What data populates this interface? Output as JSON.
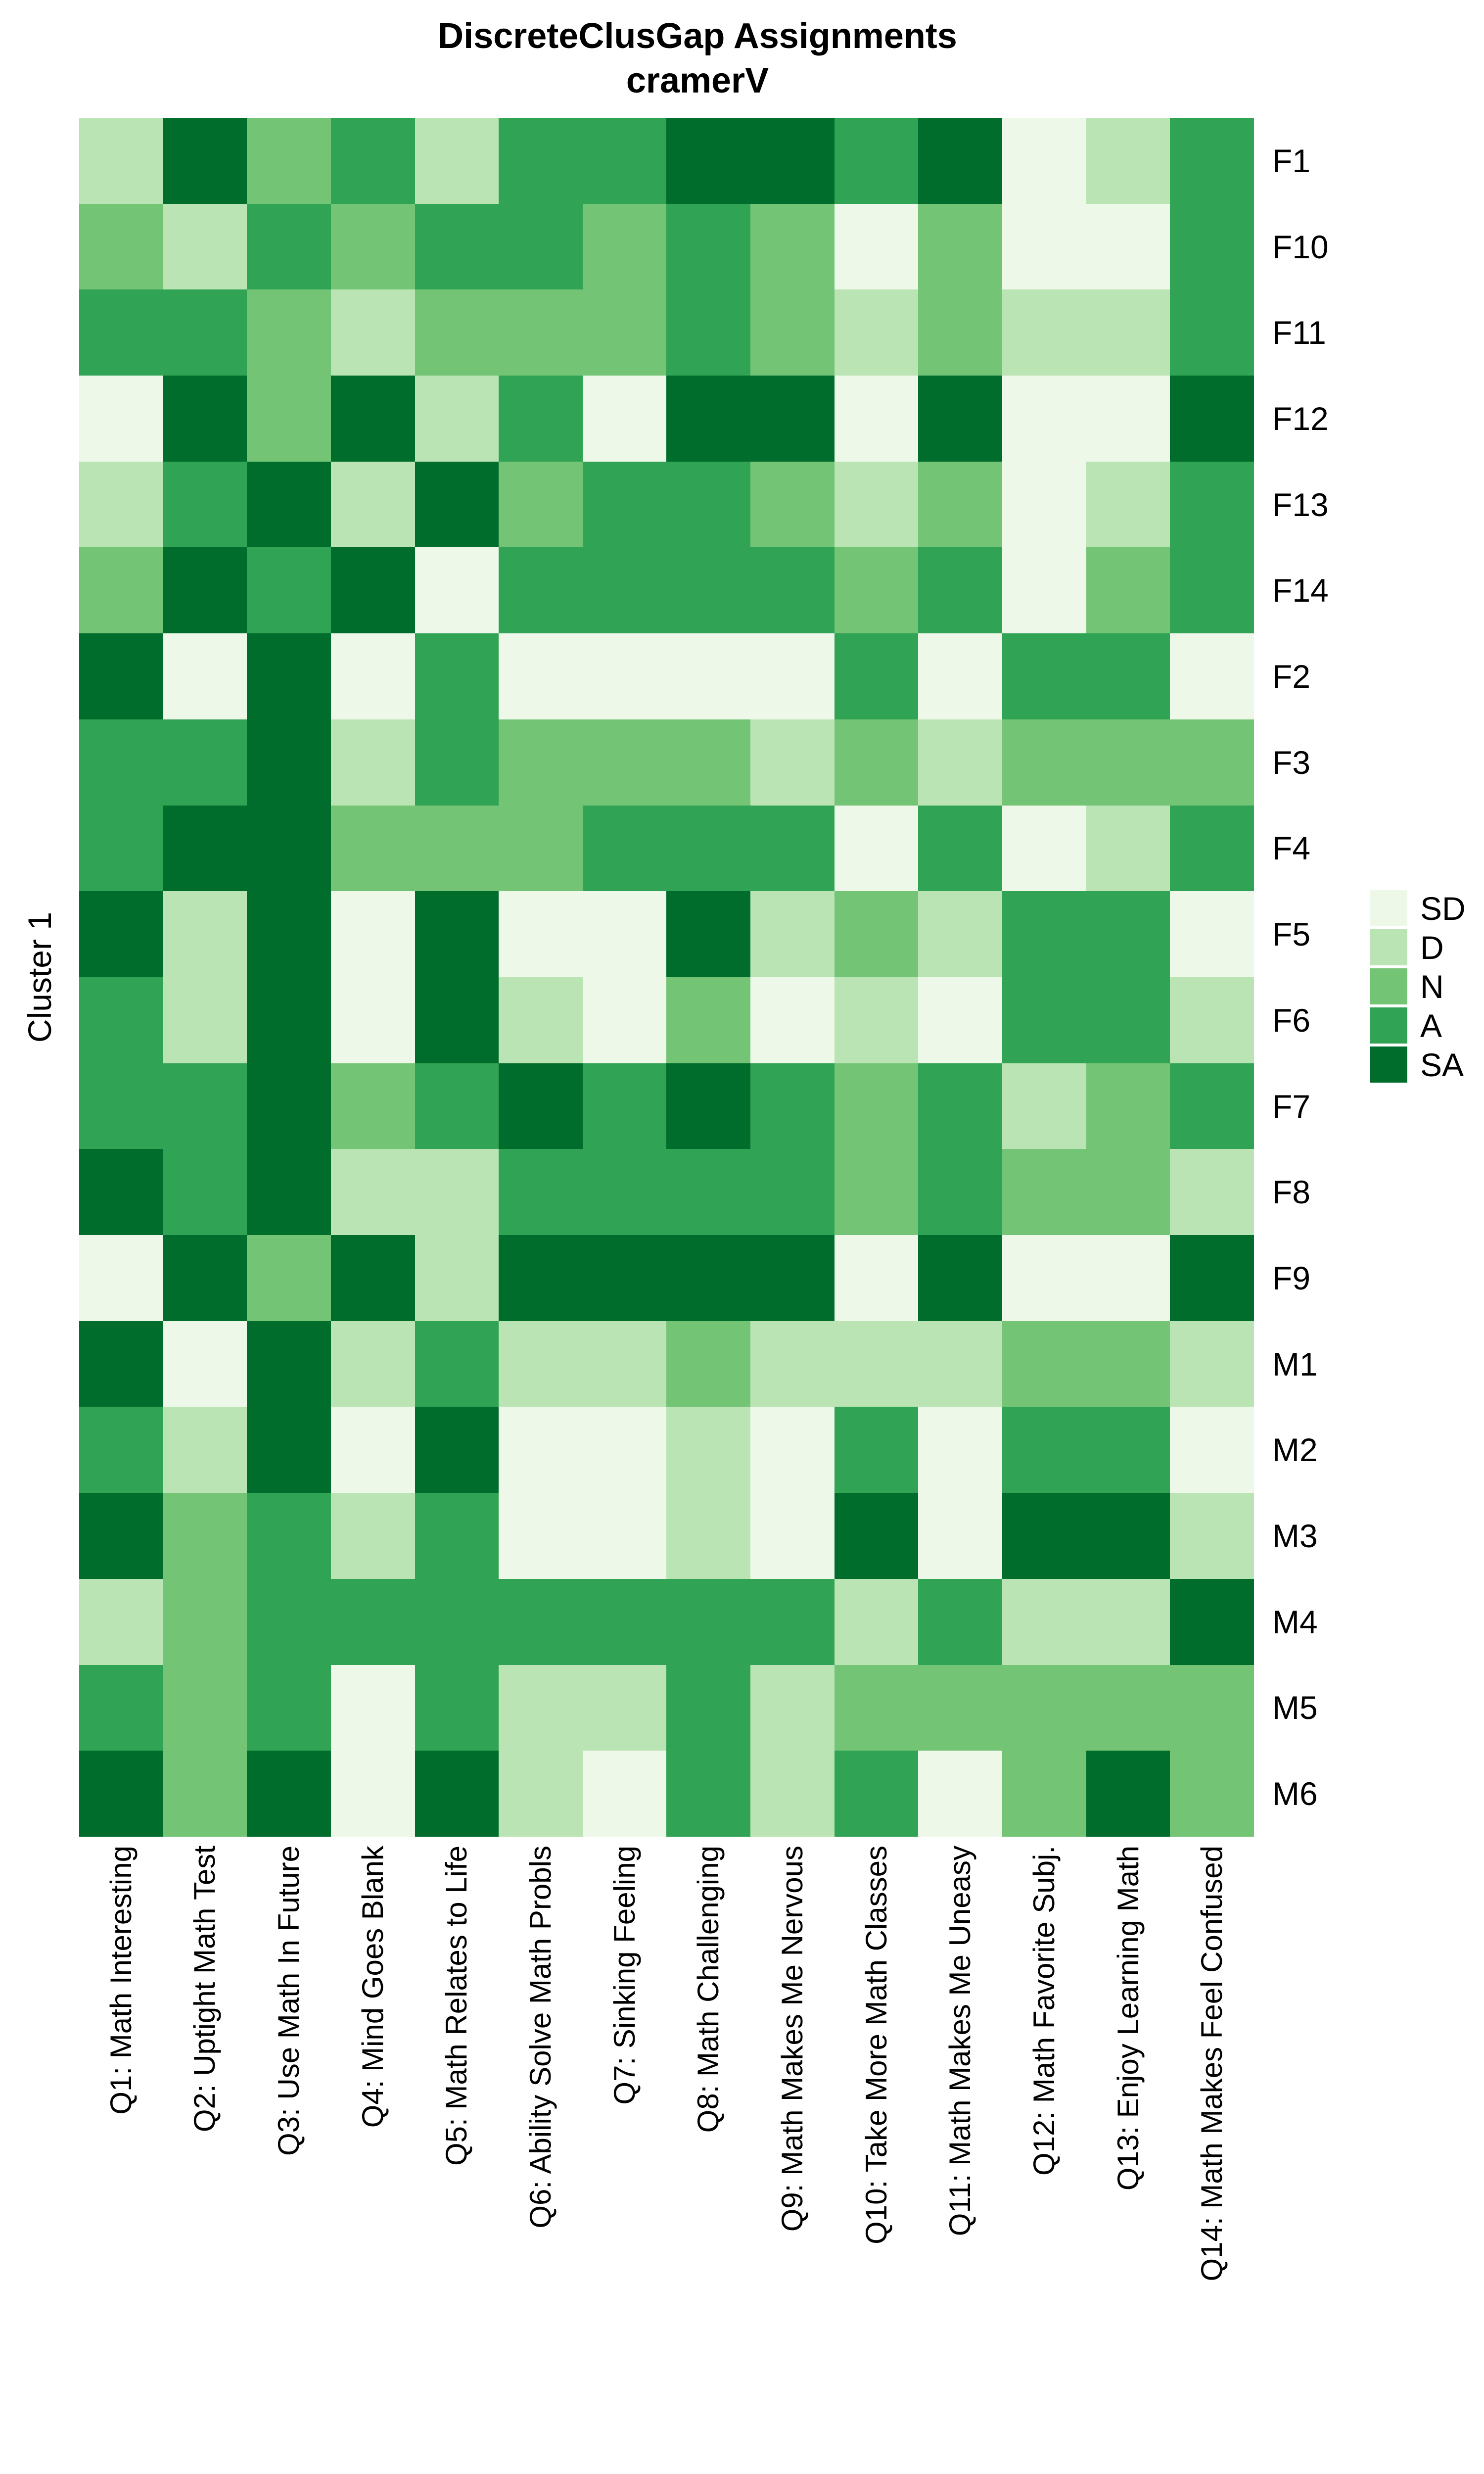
{
  "page": {
    "background_color": "#ffffff",
    "text_color": "#000000"
  },
  "chart_data": {
    "type": "heatmap",
    "title": "DiscreteClusGap Assignments",
    "subtitle": "cramerV",
    "y_axis_label": "Cluster 1",
    "legend_position": "right",
    "grid": false,
    "legend": {
      "entries": [
        {
          "label": "SD",
          "color": "#edf8e9"
        },
        {
          "label": "D",
          "color": "#bae4b3"
        },
        {
          "label": "N",
          "color": "#74c476"
        },
        {
          "label": "A",
          "color": "#31a354"
        },
        {
          "label": "SA",
          "color": "#006d2c"
        }
      ]
    },
    "columns": [
      "Q1: Math Interesting",
      "Q2: Uptight Math Test",
      "Q3: Use Math In Future",
      "Q4: Mind Goes Blank",
      "Q5: Math Relates to Life",
      "Q6: Ability Solve Math Probls",
      "Q7: Sinking Feeling",
      "Q8: Math Challenging",
      "Q9: Math Makes Me Nervous",
      "Q10: Take More Math Classes",
      "Q11: Math Makes Me Uneasy",
      "Q12: Math Favorite Subj.",
      "Q13: Enjoy Learning Math",
      "Q14: Math Makes Feel Confused"
    ],
    "rows": [
      "F1",
      "F10",
      "F11",
      "F12",
      "F13",
      "F14",
      "F2",
      "F3",
      "F4",
      "F5",
      "F6",
      "F7",
      "F8",
      "F9",
      "M1",
      "M2",
      "M3",
      "M4",
      "M5",
      "M6"
    ],
    "values": [
      [
        "D",
        "SA",
        "N",
        "A",
        "D",
        "A",
        "A",
        "SA",
        "SA",
        "A",
        "SA",
        "SD",
        "D",
        "A"
      ],
      [
        "N",
        "D",
        "A",
        "N",
        "A",
        "A",
        "N",
        "A",
        "N",
        "SD",
        "N",
        "SD",
        "SD",
        "A"
      ],
      [
        "A",
        "A",
        "N",
        "D",
        "N",
        "N",
        "N",
        "A",
        "N",
        "D",
        "N",
        "D",
        "D",
        "A"
      ],
      [
        "SD",
        "SA",
        "N",
        "SA",
        "D",
        "A",
        "SD",
        "SA",
        "SA",
        "SD",
        "SA",
        "SD",
        "SD",
        "SA"
      ],
      [
        "D",
        "A",
        "SA",
        "D",
        "SA",
        "N",
        "A",
        "A",
        "N",
        "D",
        "N",
        "SD",
        "D",
        "A"
      ],
      [
        "N",
        "SA",
        "A",
        "SA",
        "SD",
        "A",
        "A",
        "A",
        "A",
        "N",
        "A",
        "SD",
        "N",
        "A"
      ],
      [
        "SA",
        "SD",
        "SA",
        "SD",
        "A",
        "SD",
        "SD",
        "SD",
        "SD",
        "A",
        "SD",
        "A",
        "A",
        "SD"
      ],
      [
        "A",
        "A",
        "SA",
        "D",
        "A",
        "N",
        "N",
        "N",
        "D",
        "N",
        "D",
        "N",
        "N",
        "N"
      ],
      [
        "A",
        "SA",
        "SA",
        "N",
        "N",
        "N",
        "A",
        "A",
        "A",
        "SD",
        "A",
        "SD",
        "D",
        "A"
      ],
      [
        "SA",
        "D",
        "SA",
        "SD",
        "SA",
        "SD",
        "SD",
        "SA",
        "D",
        "N",
        "D",
        "A",
        "A",
        "SD"
      ],
      [
        "A",
        "D",
        "SA",
        "SD",
        "SA",
        "D",
        "SD",
        "N",
        "SD",
        "D",
        "SD",
        "A",
        "A",
        "D"
      ],
      [
        "A",
        "A",
        "SA",
        "N",
        "A",
        "SA",
        "A",
        "SA",
        "A",
        "N",
        "A",
        "D",
        "N",
        "A"
      ],
      [
        "SA",
        "A",
        "SA",
        "D",
        "D",
        "A",
        "A",
        "A",
        "A",
        "N",
        "A",
        "N",
        "N",
        "D"
      ],
      [
        "SD",
        "SA",
        "N",
        "SA",
        "D",
        "SA",
        "SA",
        "SA",
        "SA",
        "SD",
        "SA",
        "SD",
        "SD",
        "SA"
      ],
      [
        "SA",
        "SD",
        "SA",
        "D",
        "A",
        "D",
        "D",
        "N",
        "D",
        "D",
        "D",
        "N",
        "N",
        "D"
      ],
      [
        "A",
        "D",
        "SA",
        "SD",
        "SA",
        "SD",
        "SD",
        "D",
        "SD",
        "A",
        "SD",
        "A",
        "A",
        "SD"
      ],
      [
        "SA",
        "N",
        "A",
        "D",
        "A",
        "SD",
        "SD",
        "D",
        "SD",
        "SA",
        "SD",
        "SA",
        "SA",
        "D"
      ],
      [
        "D",
        "N",
        "A",
        "A",
        "A",
        "A",
        "A",
        "A",
        "A",
        "D",
        "A",
        "D",
        "D",
        "SA"
      ],
      [
        "A",
        "N",
        "A",
        "SD",
        "A",
        "D",
        "D",
        "A",
        "D",
        "N",
        "N",
        "N",
        "N",
        "N"
      ],
      [
        "SA",
        "N",
        "SA",
        "SD",
        "SA",
        "D",
        "SD",
        "A",
        "D",
        "A",
        "SD",
        "N",
        "SA",
        "N"
      ]
    ]
  }
}
